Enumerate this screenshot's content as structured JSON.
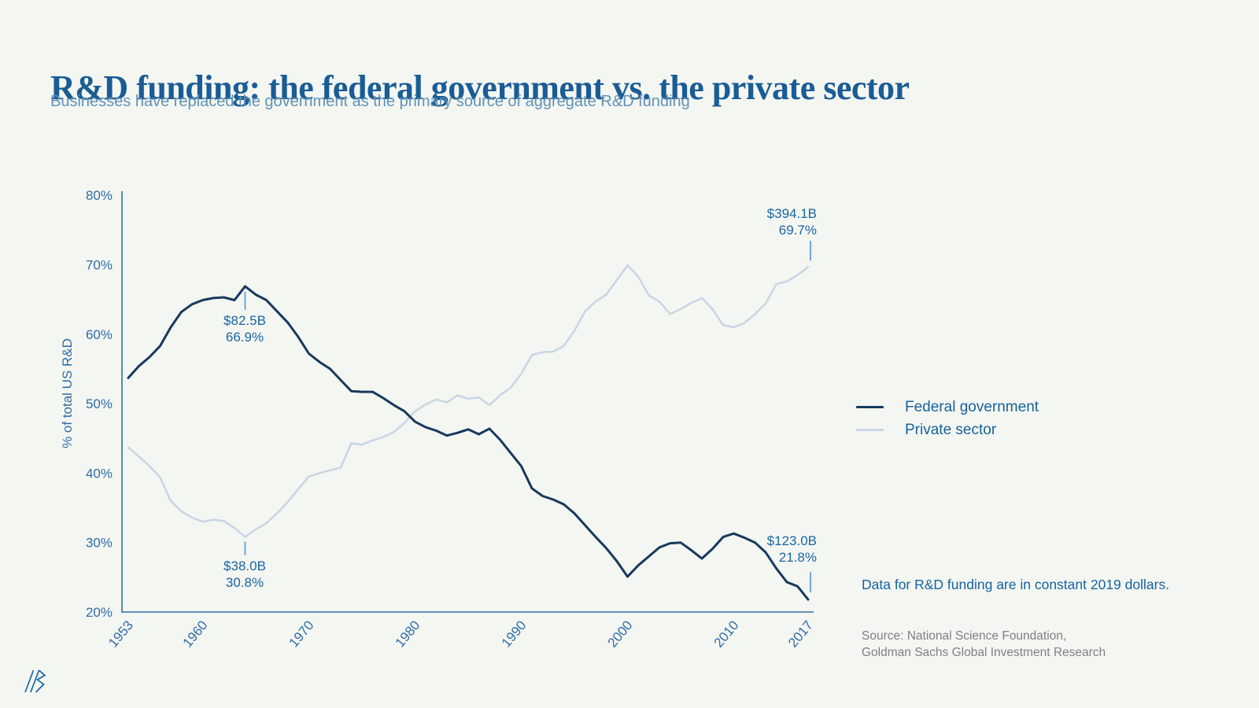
{
  "header": {
    "title": "R&D funding: the federal government vs. the private sector",
    "subtitle": "Businesses have replaced the government as the primary source of aggregate R&D funding"
  },
  "chart_data": {
    "type": "line",
    "title": "R&D funding: the federal government vs. the private sector",
    "xlabel": "",
    "ylabel": "% of total US R&D",
    "ylim": [
      20,
      80
    ],
    "grid": false,
    "legend_position": "right",
    "x_ticks": [
      1953,
      1960,
      1970,
      1980,
      1990,
      2000,
      2010,
      2017
    ],
    "y_ticks": [
      {
        "value": 80,
        "label": "80%"
      },
      {
        "value": 70,
        "label": "70%"
      },
      {
        "value": 60,
        "label": "60%"
      },
      {
        "value": 50,
        "label": "50%"
      },
      {
        "value": 40,
        "label": "40%"
      },
      {
        "value": 30,
        "label": "30%"
      },
      {
        "value": 20,
        "label": "20%"
      }
    ],
    "x": [
      1953,
      1954,
      1955,
      1956,
      1957,
      1958,
      1959,
      1960,
      1961,
      1962,
      1963,
      1964,
      1965,
      1966,
      1967,
      1968,
      1969,
      1970,
      1971,
      1972,
      1973,
      1974,
      1975,
      1976,
      1977,
      1978,
      1979,
      1980,
      1981,
      1982,
      1983,
      1984,
      1985,
      1986,
      1987,
      1988,
      1989,
      1990,
      1991,
      1992,
      1993,
      1994,
      1995,
      1996,
      1997,
      1998,
      1999,
      2000,
      2001,
      2002,
      2003,
      2004,
      2005,
      2006,
      2007,
      2008,
      2009,
      2010,
      2011,
      2012,
      2013,
      2014,
      2015,
      2016,
      2017
    ],
    "series": [
      {
        "name": "Federal government",
        "color": "#17395d",
        "stroke_width": 3,
        "values": [
          53.7,
          55.4,
          56.7,
          58.3,
          61.0,
          63.2,
          64.3,
          64.9,
          65.2,
          65.3,
          64.9,
          66.9,
          65.7,
          64.9,
          63.3,
          61.7,
          59.6,
          57.2,
          56.0,
          55.0,
          53.4,
          51.8,
          51.7,
          51.7,
          50.8,
          49.8,
          48.9,
          47.4,
          46.6,
          46.1,
          45.4,
          45.8,
          46.3,
          45.6,
          46.4,
          44.8,
          42.9,
          41.0,
          37.8,
          36.7,
          36.2,
          35.5,
          34.2,
          32.5,
          30.8,
          29.2,
          27.3,
          25.1,
          26.7,
          28.0,
          29.3,
          29.9,
          30.0,
          28.9,
          27.7,
          29.1,
          30.8,
          31.3,
          30.7,
          30.0,
          28.6,
          26.3,
          24.3,
          23.7,
          21.8
        ]
      },
      {
        "name": "Private sector",
        "color": "#c8d5e5",
        "stroke_width": 2.5,
        "values": [
          43.7,
          42.4,
          41.0,
          39.4,
          36.0,
          34.5,
          33.6,
          33.0,
          33.3,
          33.1,
          32.1,
          30.8,
          31.9,
          32.8,
          34.2,
          35.8,
          37.7,
          39.5,
          40.0,
          40.4,
          40.8,
          44.3,
          44.1,
          44.7,
          45.2,
          45.9,
          47.2,
          48.9,
          49.9,
          50.6,
          50.2,
          51.2,
          50.7,
          50.9,
          49.8,
          51.2,
          52.3,
          54.3,
          57.0,
          57.4,
          57.5,
          58.3,
          60.5,
          63.3,
          64.7,
          65.7,
          67.8,
          69.9,
          68.3,
          65.6,
          64.7,
          62.9,
          63.6,
          64.5,
          65.2,
          63.6,
          61.3,
          61.0,
          61.6,
          62.9,
          64.4,
          67.2,
          67.6,
          68.5,
          69.7
        ]
      }
    ],
    "annotations": [
      {
        "line1": "$82.5B",
        "line2": "66.9%",
        "year": 1964,
        "series": "Federal government",
        "value": 66.9
      },
      {
        "line1": "$38.0B",
        "line2": "30.8%",
        "year": 1964,
        "series": "Private sector",
        "value": 30.8
      },
      {
        "line1": "$394.1B",
        "line2": "69.7%",
        "year": 2017,
        "series": "Private sector",
        "value": 69.7
      },
      {
        "line1": "$123.0B",
        "line2": "21.8%",
        "year": 2017,
        "series": "Federal government",
        "value": 21.8
      }
    ]
  },
  "legend": {
    "items": [
      {
        "label": "Federal government",
        "color": "#17395d"
      },
      {
        "label": "Private sector",
        "color": "#c8d5e5"
      }
    ]
  },
  "note": "Data for R&D funding are in constant 2019 dollars.",
  "source": {
    "line1": "Source: National Science Foundation,",
    "line2": "Goldman Sachs Global Investment Research"
  },
  "colors": {
    "background": "#f4f6f2",
    "title": "#1a5c95",
    "subtitle": "#6292b5",
    "axis": "#2e6da6",
    "tick_label": "#2d6ca7",
    "annotation_text": "#1a65a1",
    "callout_line": "#70a5d4",
    "note_text": "#1563a2",
    "source_text": "#7d8184",
    "logo": "#1565a5"
  }
}
